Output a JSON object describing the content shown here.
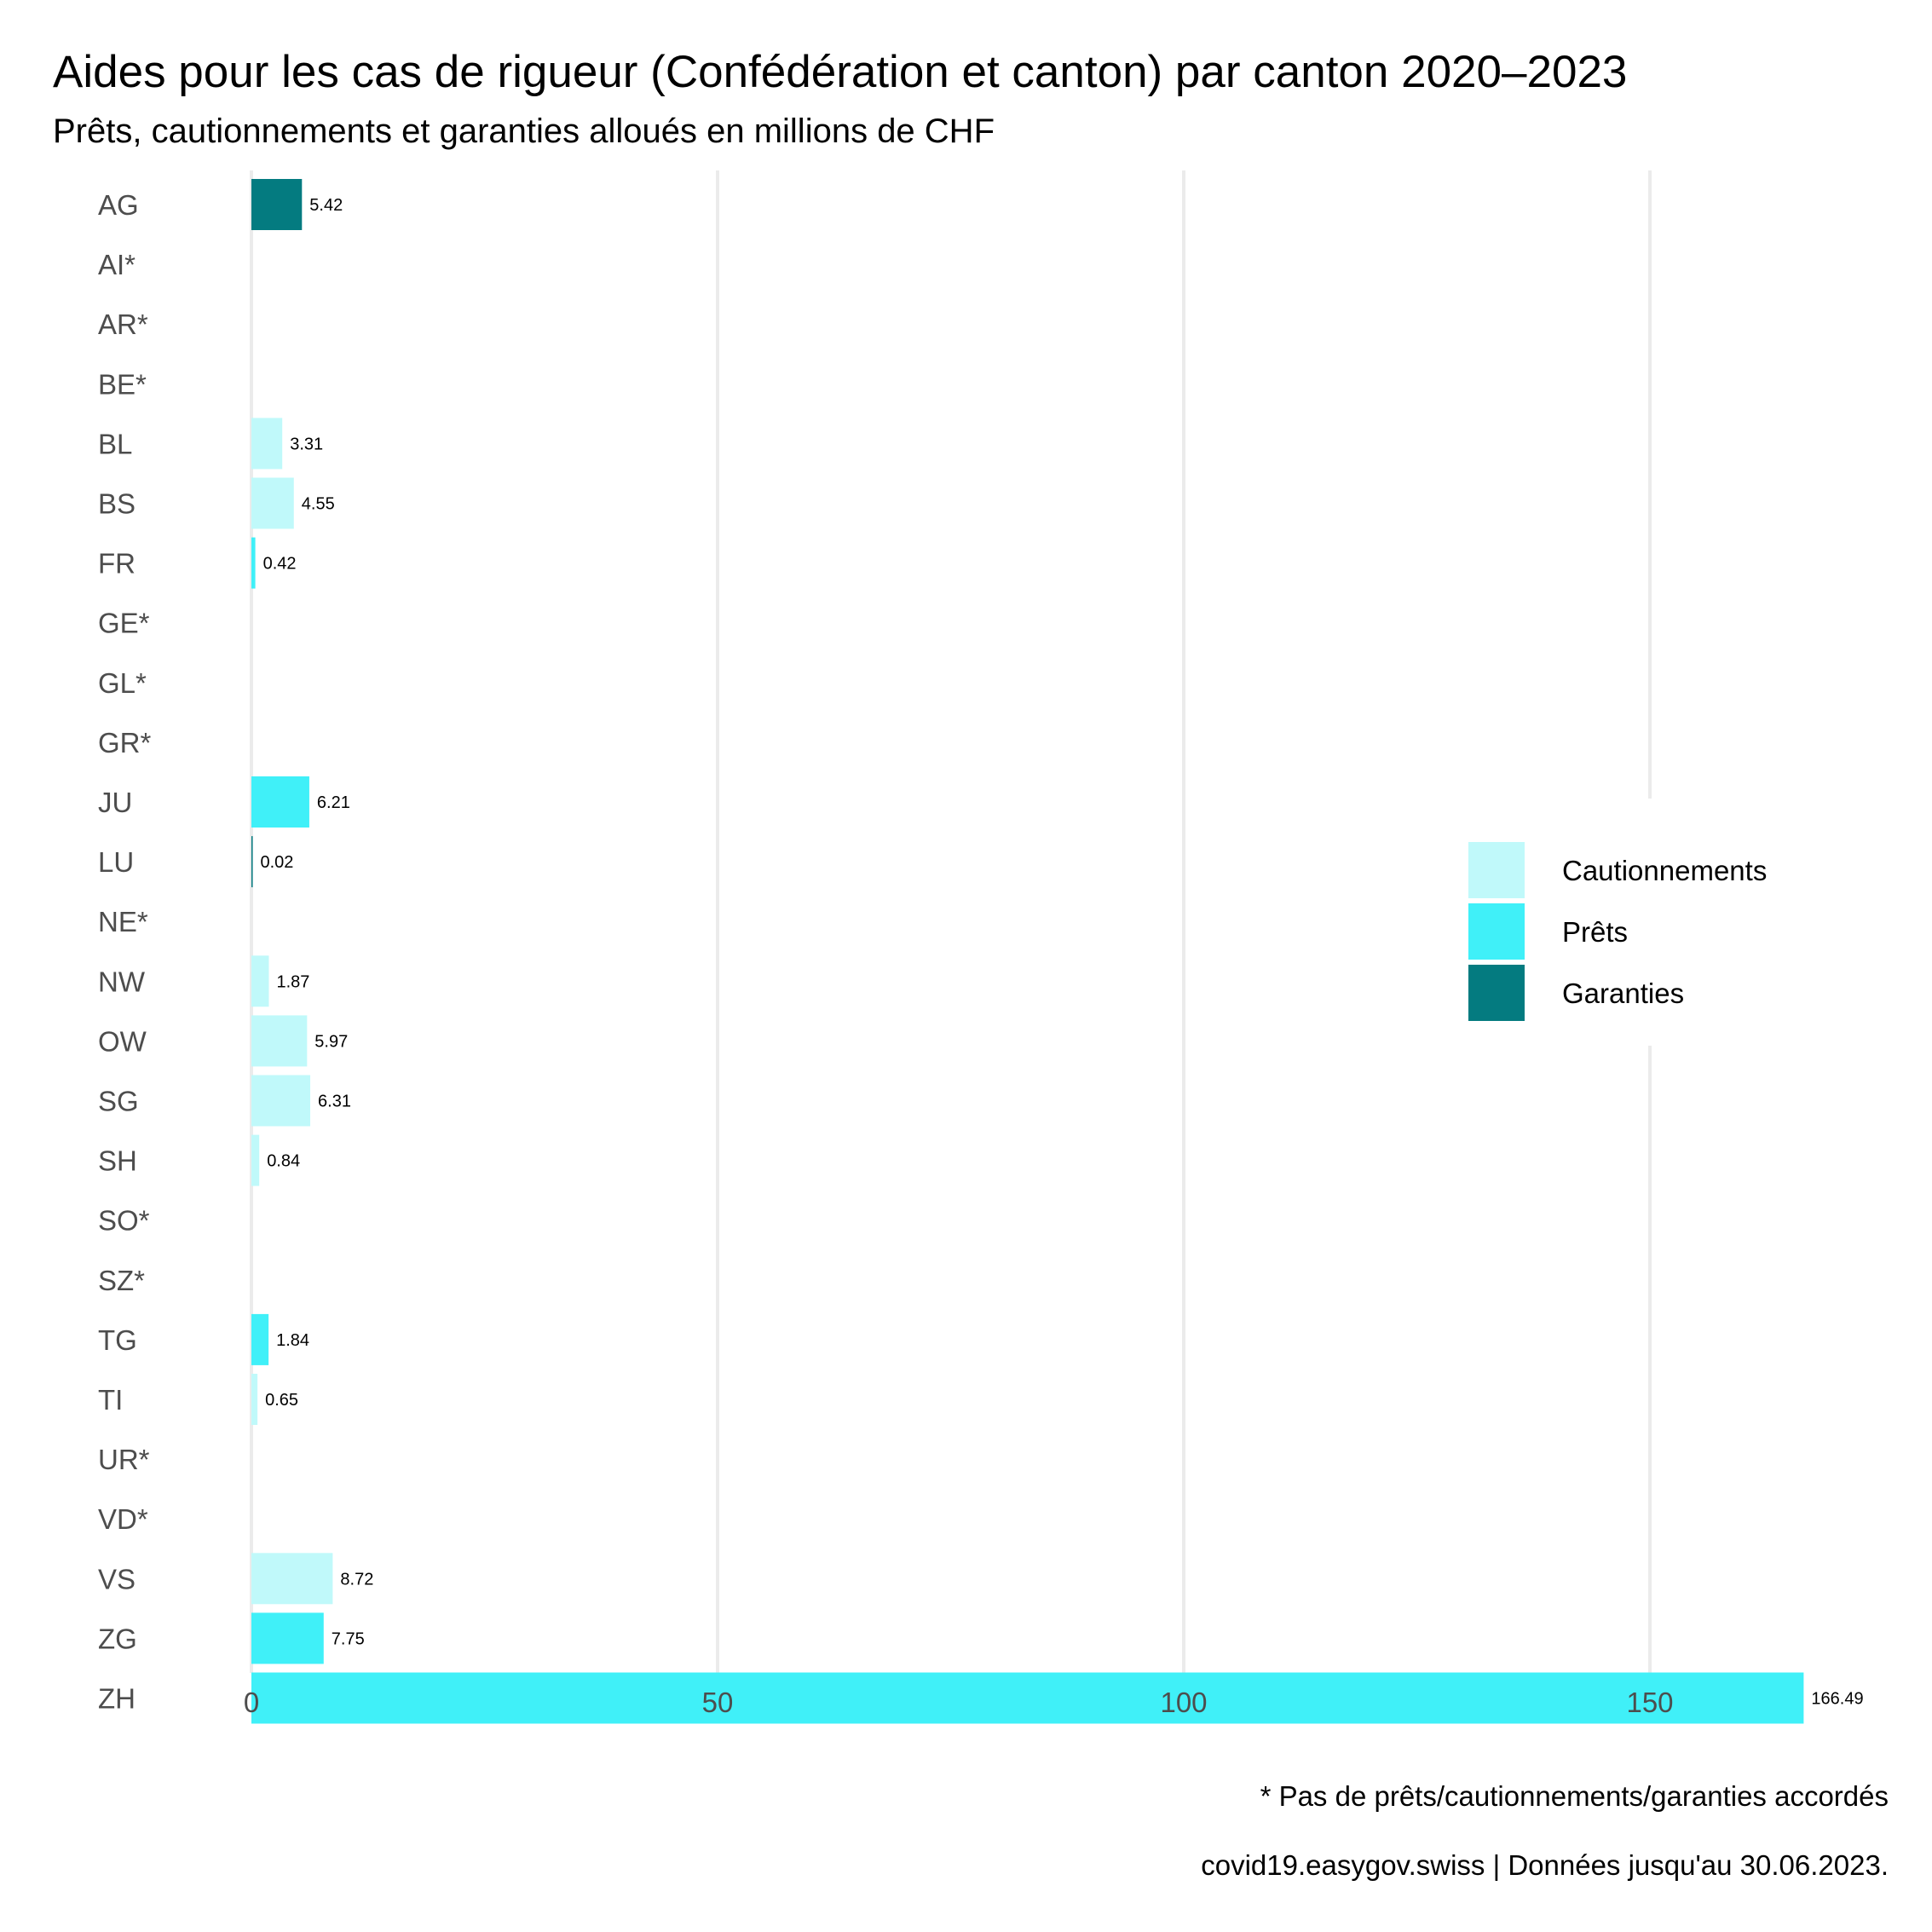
{
  "chart_data": {
    "type": "bar",
    "orientation": "horizontal",
    "title": "Aides pour les cas de rigueur (Confédération et canton) par canton 2020–2023",
    "subtitle": "Prêts, cautionnements et garanties alloués en millions de CHF",
    "xlabel": "",
    "ylabel": "",
    "xlim": [
      0,
      166.49
    ],
    "xticks": [
      0,
      50,
      100,
      150
    ],
    "xtick_labels": [
      "0",
      "50",
      "100",
      "150"
    ],
    "grid": "vertical major gridlines",
    "legend_position": "right",
    "series": [
      {
        "name": "Cautionnements",
        "color": "#c0f9fa"
      },
      {
        "name": "Prêts",
        "color": "#40f0f8"
      },
      {
        "name": "Garanties",
        "color": "#047b80"
      }
    ],
    "categories": [
      "AG",
      "AI*",
      "AR*",
      "BE*",
      "BL",
      "BS",
      "FR",
      "GE*",
      "GL*",
      "GR*",
      "JU",
      "LU",
      "NE*",
      "NW",
      "OW",
      "SG",
      "SH",
      "SO*",
      "SZ*",
      "TG",
      "TI",
      "UR*",
      "VD*",
      "VS",
      "ZG",
      "ZH"
    ],
    "bars": [
      {
        "canton": "AG",
        "series": "Garanties",
        "value": 5.42,
        "label": "5.42"
      },
      {
        "canton": "AI*",
        "series": null,
        "value": null,
        "label": ""
      },
      {
        "canton": "AR*",
        "series": null,
        "value": null,
        "label": ""
      },
      {
        "canton": "BE*",
        "series": null,
        "value": null,
        "label": ""
      },
      {
        "canton": "BL",
        "series": "Cautionnements",
        "value": 3.31,
        "label": "3.31"
      },
      {
        "canton": "BS",
        "series": "Cautionnements",
        "value": 4.55,
        "label": "4.55"
      },
      {
        "canton": "FR",
        "series": "Prêts",
        "value": 0.42,
        "label": "0.42"
      },
      {
        "canton": "GE*",
        "series": null,
        "value": null,
        "label": ""
      },
      {
        "canton": "GL*",
        "series": null,
        "value": null,
        "label": ""
      },
      {
        "canton": "GR*",
        "series": null,
        "value": null,
        "label": ""
      },
      {
        "canton": "JU",
        "series": "Prêts",
        "value": 6.21,
        "label": "6.21"
      },
      {
        "canton": "LU",
        "series": "Garanties",
        "value": 0.02,
        "label": "0.02"
      },
      {
        "canton": "NE*",
        "series": null,
        "value": null,
        "label": ""
      },
      {
        "canton": "NW",
        "series": "Cautionnements",
        "value": 1.87,
        "label": "1.87"
      },
      {
        "canton": "OW",
        "series": "Cautionnements",
        "value": 5.97,
        "label": "5.97"
      },
      {
        "canton": "SG",
        "series": "Cautionnements",
        "value": 6.31,
        "label": "6.31"
      },
      {
        "canton": "SH",
        "series": "Cautionnements",
        "value": 0.84,
        "label": "0.84"
      },
      {
        "canton": "SO*",
        "series": null,
        "value": null,
        "label": ""
      },
      {
        "canton": "SZ*",
        "series": null,
        "value": null,
        "label": ""
      },
      {
        "canton": "TG",
        "series": "Prêts",
        "value": 1.84,
        "label": "1.84"
      },
      {
        "canton": "TI",
        "series": "Cautionnements",
        "value": 0.65,
        "label": "0.65"
      },
      {
        "canton": "UR*",
        "series": null,
        "value": null,
        "label": ""
      },
      {
        "canton": "VD*",
        "series": null,
        "value": null,
        "label": ""
      },
      {
        "canton": "VS",
        "series": "Cautionnements",
        "value": 8.72,
        "label": "8.72"
      },
      {
        "canton": "ZG",
        "series": "Prêts",
        "value": 7.75,
        "label": "7.75"
      },
      {
        "canton": "ZH",
        "series": "Prêts",
        "value": 166.49,
        "label": "166.49"
      }
    ],
    "annotations": {
      "footnote": "* Pas de prêts/cautionnements/garanties accordés",
      "caption": "covid19.easygov.swiss | Données jusqu'au 30.06.2023."
    }
  }
}
